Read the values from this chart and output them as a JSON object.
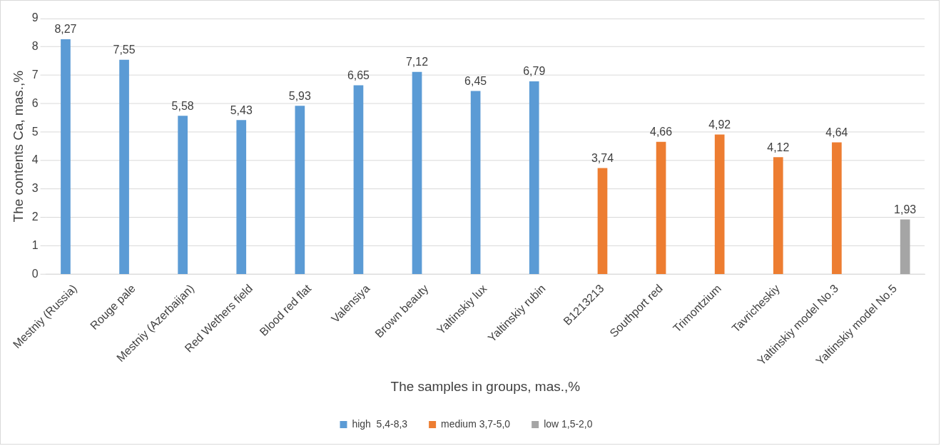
{
  "chart_data": {
    "type": "bar",
    "xlabel": "The samples in groups, mas.,%",
    "ylabel": "The contents Ca, mas.,%",
    "categories": [
      "Mestniy (Russia)",
      "Rouge pale",
      "Mestniy (Azerbaijan)",
      "Red Wethers field",
      "Blood red flat",
      "Valensiya",
      "Brown beauty",
      "Yaltinskiy lux",
      "Yaltinskiy rubin",
      "B1213213",
      "Southport red",
      "Trimontzium",
      "Tavricheskiy",
      "Yaltinskiy model No.3",
      "Yaltinskiy model No.5"
    ],
    "series": [
      {
        "name": "high  5,4-8,3",
        "color": "#5b9bd5",
        "values": [
          8.27,
          7.55,
          5.58,
          5.43,
          5.93,
          6.65,
          7.12,
          6.45,
          6.79,
          null,
          null,
          null,
          null,
          null,
          null
        ],
        "value_labels": [
          "8,27",
          "7,55",
          "5,58",
          "5,43",
          "5,93",
          "6,65",
          "7,12",
          "6,45",
          "6,79",
          null,
          null,
          null,
          null,
          null,
          null
        ]
      },
      {
        "name": "medium 3,7-5,0",
        "color": "#ed7d31",
        "values": [
          null,
          null,
          null,
          null,
          null,
          null,
          null,
          null,
          null,
          3.74,
          4.66,
          4.92,
          4.12,
          4.64,
          null
        ],
        "value_labels": [
          null,
          null,
          null,
          null,
          null,
          null,
          null,
          null,
          null,
          "3,74",
          "4,66",
          "4,92",
          "4,12",
          "4,64",
          null
        ]
      },
      {
        "name": "low 1,5-2,0",
        "color": "#a5a5a5",
        "values": [
          null,
          null,
          null,
          null,
          null,
          null,
          null,
          null,
          null,
          null,
          null,
          null,
          null,
          null,
          1.93
        ],
        "value_labels": [
          null,
          null,
          null,
          null,
          null,
          null,
          null,
          null,
          null,
          null,
          null,
          null,
          null,
          null,
          "1,93"
        ]
      }
    ],
    "ylim": [
      0,
      9
    ],
    "yticks": [
      0,
      1,
      2,
      3,
      4,
      5,
      6,
      7,
      8,
      9
    ],
    "grid": "y",
    "legend": "bottom"
  }
}
